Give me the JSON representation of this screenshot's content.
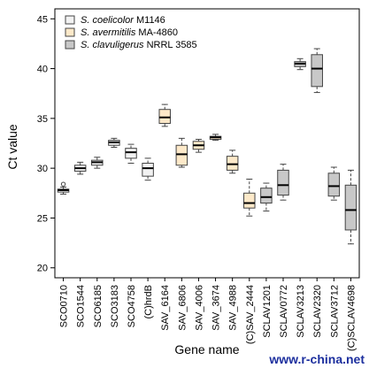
{
  "chart_data": {
    "type": "boxplot",
    "ylabel": "Ct value",
    "xlabel": "Gene name",
    "ylim": [
      19,
      46
    ],
    "yticks": [
      20,
      25,
      30,
      35,
      40,
      45
    ],
    "grid": false,
    "legend_position": "top-left",
    "legend": [
      {
        "group": "SCO",
        "italic": "S. coelicolor",
        "rest": " M1146",
        "color": "#f2f2f2"
      },
      {
        "group": "SAV",
        "italic": "S. avermitilis",
        "rest": " MA-4860",
        "color": "#fde9c9"
      },
      {
        "group": "SCLAV",
        "italic": "S. clavuligerus",
        "rest": " NRRL 3585",
        "color": "#c8c8c8"
      }
    ],
    "boxes": [
      {
        "label": "SCO0710",
        "group": "SCO",
        "whisker_low": 27.4,
        "q1": 27.6,
        "median": 27.8,
        "q3": 27.9,
        "whisker_high": 28.1,
        "outliers": [
          28.4
        ]
      },
      {
        "label": "SCO1544",
        "group": "SCO",
        "whisker_low": 29.4,
        "q1": 29.7,
        "median": 30.0,
        "q3": 30.3,
        "whisker_high": 30.6,
        "outliers": []
      },
      {
        "label": "SCO6185",
        "group": "SCO",
        "whisker_low": 30.0,
        "q1": 30.3,
        "median": 30.6,
        "q3": 30.8,
        "whisker_high": 31.1,
        "outliers": []
      },
      {
        "label": "SCO3183",
        "group": "SCO",
        "whisker_low": 32.1,
        "q1": 32.3,
        "median": 32.6,
        "q3": 32.8,
        "whisker_high": 33.0,
        "outliers": []
      },
      {
        "label": "SCO4758",
        "group": "SCO",
        "whisker_low": 30.5,
        "q1": 31.0,
        "median": 31.6,
        "q3": 32.0,
        "whisker_high": 32.4,
        "outliers": []
      },
      {
        "label": "(C)hrdB",
        "group": "SCO",
        "whisker_low": 28.8,
        "q1": 29.2,
        "median": 30.0,
        "q3": 30.5,
        "whisker_high": 31.0,
        "outliers": []
      },
      {
        "label": "SAV_6164",
        "group": "SAV",
        "whisker_low": 34.2,
        "q1": 34.5,
        "median": 35.1,
        "q3": 35.9,
        "whisker_high": 36.4,
        "outliers": []
      },
      {
        "label": "SAV_6806",
        "group": "SAV",
        "whisker_low": 30.1,
        "q1": 30.3,
        "median": 31.4,
        "q3": 32.3,
        "whisker_high": 33.0,
        "outliers": []
      },
      {
        "label": "SAV_4006",
        "group": "SAV",
        "whisker_low": 31.6,
        "q1": 31.9,
        "median": 32.3,
        "q3": 32.7,
        "whisker_high": 32.9,
        "outliers": []
      },
      {
        "label": "SAV_3674",
        "group": "SAV",
        "whisker_low": 32.8,
        "q1": 32.9,
        "median": 33.1,
        "q3": 33.2,
        "whisker_high": 33.4,
        "outliers": []
      },
      {
        "label": "SAV_4988",
        "group": "SAV",
        "whisker_low": 29.5,
        "q1": 29.8,
        "median": 30.4,
        "q3": 31.2,
        "whisker_high": 31.8,
        "outliers": []
      },
      {
        "label": "(C)SAV_2444",
        "group": "SAV",
        "whisker_low": 25.2,
        "q1": 26.0,
        "median": 26.5,
        "q3": 27.5,
        "whisker_high": 28.9,
        "outliers": []
      },
      {
        "label": "SCLAV1201",
        "group": "SCLAV",
        "whisker_low": 25.7,
        "q1": 26.5,
        "median": 27.1,
        "q3": 28.0,
        "whisker_high": 28.5,
        "outliers": []
      },
      {
        "label": "SCLAV0772",
        "group": "SCLAV",
        "whisker_low": 26.8,
        "q1": 27.3,
        "median": 28.3,
        "q3": 29.8,
        "whisker_high": 30.4,
        "outliers": []
      },
      {
        "label": "SCLAV3213",
        "group": "SCLAV",
        "whisker_low": 39.9,
        "q1": 40.2,
        "median": 40.5,
        "q3": 40.7,
        "whisker_high": 41.0,
        "outliers": []
      },
      {
        "label": "SCLAV2320",
        "group": "SCLAV",
        "whisker_low": 37.6,
        "q1": 38.2,
        "median": 40.0,
        "q3": 41.4,
        "whisker_high": 42.0,
        "outliers": []
      },
      {
        "label": "SCLAV3712",
        "group": "SCLAV",
        "whisker_low": 26.8,
        "q1": 27.2,
        "median": 28.2,
        "q3": 29.5,
        "whisker_high": 30.1,
        "outliers": []
      },
      {
        "label": "(C)SCLAV4698",
        "group": "SCLAV",
        "whisker_low": 22.4,
        "q1": 23.8,
        "median": 25.8,
        "q3": 28.3,
        "whisker_high": 29.8,
        "outliers": []
      }
    ]
  },
  "watermark": "www.r-china.net"
}
